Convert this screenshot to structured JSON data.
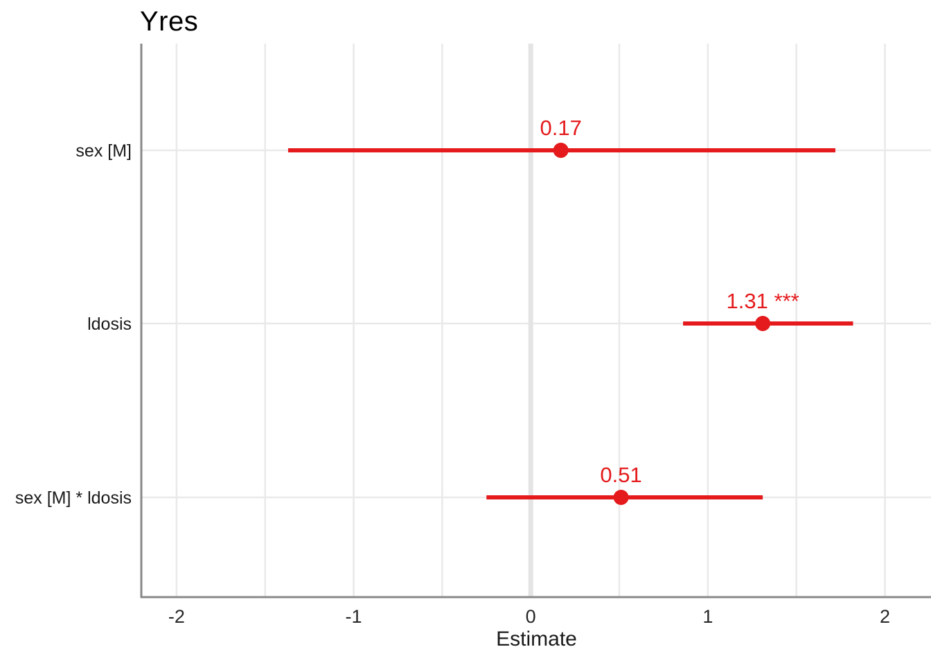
{
  "chart_data": {
    "type": "scatter",
    "subtype": "forest-coefficient-plot",
    "title": "Yres",
    "xlabel": "Estimate",
    "ylabel": "",
    "xlim": [
      -2.195,
      2.26
    ],
    "xticks": [
      -2,
      -1,
      0,
      1,
      2
    ],
    "xtick_labels": [
      "-2",
      "-1",
      "0",
      "1",
      "2"
    ],
    "minor_grid_step": 0.5,
    "grid": true,
    "zero_reference_line": true,
    "legend_position": "none",
    "categories": [
      "sex [M]",
      "ldosis",
      "sex [M] * ldosis"
    ],
    "series": [
      {
        "name": "estimates",
        "points": [
          {
            "term": "sex [M]",
            "estimate": 0.17,
            "ci_low": -1.37,
            "ci_high": 1.72,
            "label": "0.17",
            "significance": ""
          },
          {
            "term": "ldosis",
            "estimate": 1.31,
            "ci_low": 0.86,
            "ci_high": 1.82,
            "label": "1.31 ***",
            "significance": "***"
          },
          {
            "term": "sex [M] * ldosis",
            "estimate": 0.51,
            "ci_low": -0.25,
            "ci_high": 1.31,
            "label": "0.51",
            "significance": ""
          }
        ]
      }
    ],
    "colors": {
      "point": "#e41a1c",
      "error_bar": "#e41a1c",
      "value_label": "#e41a1c",
      "gridline": "#e9e9e9",
      "zero_line": "#e4e4e4",
      "axis_line": "#888888",
      "tick_text": "#262626",
      "category_text": "#1a1a1a",
      "title_text": "#000000",
      "background": "#ffffff"
    }
  }
}
